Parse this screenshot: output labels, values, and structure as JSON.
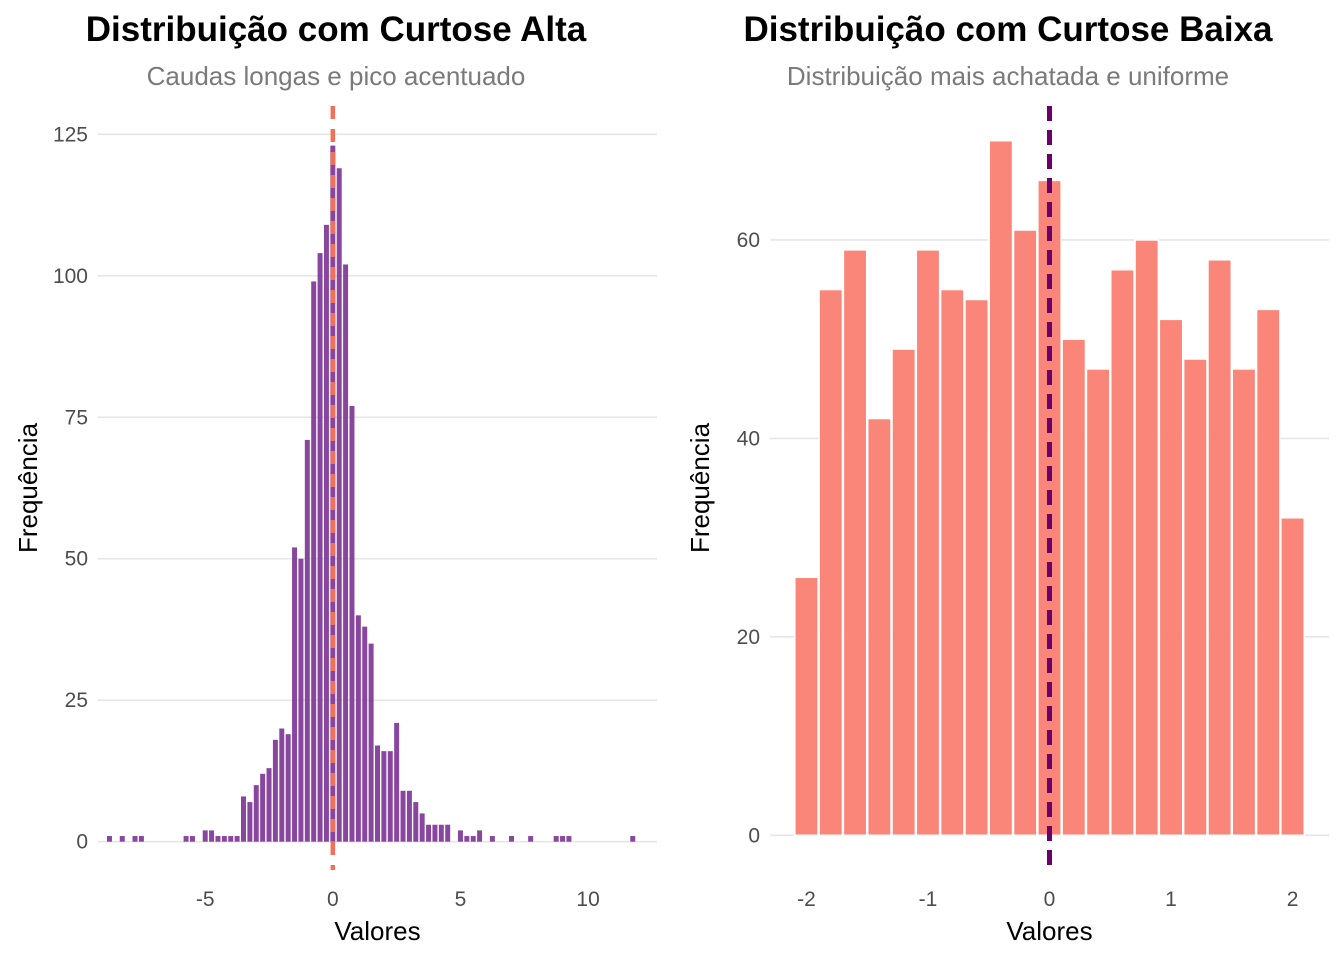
{
  "chart_data": [
    {
      "type": "bar",
      "title": "Distribuição com Curtose Alta",
      "subtitle": "Caudas longas e pico acentuado",
      "xlabel": "Valores",
      "ylabel": "Frequência",
      "xlim": [
        -9.2,
        12.7
      ],
      "ylim": [
        -5,
        130
      ],
      "xticks": [
        -5,
        0,
        5,
        10
      ],
      "xtick_labels": [
        "-5",
        "0",
        "5",
        "10"
      ],
      "yticks": [
        0,
        25,
        50,
        75,
        100,
        125
      ],
      "ytick_labels": [
        "0",
        "25",
        "50",
        "75",
        "100",
        "125"
      ],
      "grid": true,
      "legend": "none",
      "bar_color": "#7b3294",
      "reference_line": {
        "x": 0,
        "style": "dashed",
        "color": "#f0705a"
      },
      "bin_width": 0.25,
      "bins": [
        {
          "x": -8.75,
          "count": 1
        },
        {
          "x": -8.25,
          "count": 1
        },
        {
          "x": -7.75,
          "count": 1
        },
        {
          "x": -7.5,
          "count": 1
        },
        {
          "x": -5.75,
          "count": 1
        },
        {
          "x": -5.5,
          "count": 1
        },
        {
          "x": -5.0,
          "count": 2
        },
        {
          "x": -4.75,
          "count": 2
        },
        {
          "x": -4.5,
          "count": 1
        },
        {
          "x": -4.25,
          "count": 1
        },
        {
          "x": -4.0,
          "count": 1
        },
        {
          "x": -3.75,
          "count": 1
        },
        {
          "x": -3.5,
          "count": 8
        },
        {
          "x": -3.25,
          "count": 7
        },
        {
          "x": -3.0,
          "count": 10
        },
        {
          "x": -2.75,
          "count": 12
        },
        {
          "x": -2.5,
          "count": 13
        },
        {
          "x": -2.25,
          "count": 18
        },
        {
          "x": -2.0,
          "count": 20
        },
        {
          "x": -1.75,
          "count": 19
        },
        {
          "x": -1.5,
          "count": 52
        },
        {
          "x": -1.25,
          "count": 50
        },
        {
          "x": -1.0,
          "count": 71
        },
        {
          "x": -0.75,
          "count": 99
        },
        {
          "x": -0.5,
          "count": 104
        },
        {
          "x": -0.25,
          "count": 109
        },
        {
          "x": 0.0,
          "count": 123
        },
        {
          "x": 0.25,
          "count": 119
        },
        {
          "x": 0.5,
          "count": 102
        },
        {
          "x": 0.75,
          "count": 77
        },
        {
          "x": 1.0,
          "count": 40
        },
        {
          "x": 1.25,
          "count": 38
        },
        {
          "x": 1.5,
          "count": 35
        },
        {
          "x": 1.75,
          "count": 17
        },
        {
          "x": 2.0,
          "count": 16
        },
        {
          "x": 2.25,
          "count": 16
        },
        {
          "x": 2.5,
          "count": 21
        },
        {
          "x": 2.75,
          "count": 9
        },
        {
          "x": 3.0,
          "count": 9
        },
        {
          "x": 3.25,
          "count": 7
        },
        {
          "x": 3.5,
          "count": 5
        },
        {
          "x": 3.75,
          "count": 3
        },
        {
          "x": 4.0,
          "count": 3
        },
        {
          "x": 4.25,
          "count": 3
        },
        {
          "x": 4.5,
          "count": 3
        },
        {
          "x": 5.0,
          "count": 2
        },
        {
          "x": 5.25,
          "count": 1
        },
        {
          "x": 5.5,
          "count": 1
        },
        {
          "x": 5.75,
          "count": 2
        },
        {
          "x": 6.25,
          "count": 1
        },
        {
          "x": 7.0,
          "count": 1
        },
        {
          "x": 7.75,
          "count": 1
        },
        {
          "x": 8.75,
          "count": 1
        },
        {
          "x": 9.0,
          "count": 1
        },
        {
          "x": 9.25,
          "count": 1
        },
        {
          "x": 11.75,
          "count": 1
        }
      ]
    },
    {
      "type": "bar",
      "title": "Distribuição com Curtose Baixa",
      "subtitle": "Distribuição mais achatada e uniforme",
      "xlabel": "Valores",
      "ylabel": "Frequência",
      "xlim": [
        -2.3,
        2.3
      ],
      "ylim": [
        -3.5,
        73.5
      ],
      "xticks": [
        -2,
        -1,
        0,
        1,
        2
      ],
      "xtick_labels": [
        "-2",
        "-1",
        "0",
        "1",
        "2"
      ],
      "yticks": [
        0,
        20,
        40,
        60
      ],
      "ytick_labels": [
        "0",
        "20",
        "40",
        "60"
      ],
      "grid": true,
      "legend": "none",
      "bar_color": "#fa8072",
      "reference_line": {
        "x": 0,
        "style": "dashed",
        "color": "#6a006a"
      },
      "bin_width": 0.2,
      "bins": [
        {
          "x": -2.0,
          "count": 26
        },
        {
          "x": -1.8,
          "count": 55
        },
        {
          "x": -1.6,
          "count": 59
        },
        {
          "x": -1.4,
          "count": 42
        },
        {
          "x": -1.2,
          "count": 49
        },
        {
          "x": -1.0,
          "count": 59
        },
        {
          "x": -0.8,
          "count": 55
        },
        {
          "x": -0.6,
          "count": 54
        },
        {
          "x": -0.4,
          "count": 70
        },
        {
          "x": -0.2,
          "count": 61
        },
        {
          "x": 0.0,
          "count": 66
        },
        {
          "x": 0.2,
          "count": 50
        },
        {
          "x": 0.4,
          "count": 47
        },
        {
          "x": 0.6,
          "count": 57
        },
        {
          "x": 0.8,
          "count": 60
        },
        {
          "x": 1.0,
          "count": 52
        },
        {
          "x": 1.2,
          "count": 48
        },
        {
          "x": 1.4,
          "count": 58
        },
        {
          "x": 1.6,
          "count": 47
        },
        {
          "x": 1.8,
          "count": 53
        },
        {
          "x": 2.0,
          "count": 32
        }
      ]
    }
  ]
}
